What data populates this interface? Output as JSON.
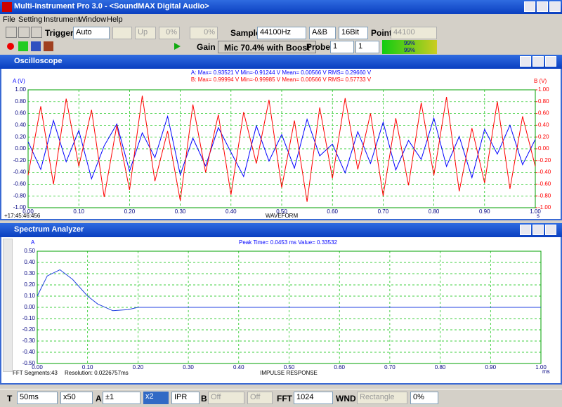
{
  "window_title": "Multi-Instrument Pro 3.0 - <SoundMAX Digital Audio>",
  "menu": [
    "File",
    "Setting",
    "Instrument",
    "Window",
    "Help"
  ],
  "toolbar1": {
    "trigger_label": "Trigger",
    "trigger_mode": "Auto",
    "trigger_edge": "Up",
    "level1": "0%",
    "level2": "0%",
    "sample_label": "Sample",
    "sample_rate": "44100Hz",
    "channels": "A&B",
    "bits": "16Bit",
    "point_label": "Point",
    "points": "44100"
  },
  "toolbar2": {
    "gain_label": "Gain",
    "input": "Mic 70.4% with Boost",
    "probe_label": "Probe",
    "probe_a": "1",
    "probe_b": "1",
    "level_a": "99%",
    "level_b": "99%"
  },
  "oscilloscope": {
    "title": "Oscilloscope",
    "y_label": "A (V)",
    "y2_label": "B (V)",
    "stats_a": "A: Max= 0.93521 V  Min=-0.91244 V  Mean= 0.00566 V  RMS= 0.29660 V",
    "stats_b": "B: Max= 0.99994 V  Min=-0.99985 V  Mean= 0.00566 V  RMS= 0.57733 V",
    "x_label": "WAVEFORM",
    "x_unit": "s",
    "timestamp": "+17:45:46:456",
    "xlim": [
      0,
      1
    ],
    "ylim": [
      -1,
      1
    ],
    "y2lim": [
      -1,
      1
    ],
    "xticks": [
      {
        "value": 0,
        "label": "0.00"
      },
      {
        "value": 0.1,
        "label": "0.10"
      },
      {
        "value": 0.2,
        "label": "0.20"
      },
      {
        "value": 0.3,
        "label": "0.30"
      },
      {
        "value": 0.4,
        "label": "0.40"
      },
      {
        "value": 0.5,
        "label": "0.50"
      },
      {
        "value": 0.6,
        "label": "0.60"
      },
      {
        "value": 0.7,
        "label": "0.70"
      },
      {
        "value": 0.8,
        "label": "0.80"
      },
      {
        "value": 0.9,
        "label": "0.90"
      },
      {
        "value": 1,
        "label": "1.00"
      }
    ],
    "yticks": [
      {
        "value": 1,
        "label": "1.00"
      },
      {
        "value": 0.8,
        "label": "0.80"
      },
      {
        "value": 0.6,
        "label": "0.60"
      },
      {
        "value": 0.4,
        "label": "0.40"
      },
      {
        "value": 0.2,
        "label": "0.20"
      },
      {
        "value": 0,
        "label": "0.00"
      },
      {
        "value": -0.2,
        "label": "-0.20"
      },
      {
        "value": -0.4,
        "label": "-0.40"
      },
      {
        "value": -0.6,
        "label": "-0.60"
      },
      {
        "value": -0.8,
        "label": "-0.80"
      },
      {
        "value": -1,
        "label": "-1.00"
      }
    ],
    "y2ticks": [
      {
        "value": 1,
        "label": "1.00"
      },
      {
        "value": 0.8,
        "label": "0.80"
      },
      {
        "value": 0.6,
        "label": "0.60"
      },
      {
        "value": 0.4,
        "label": "0.40"
      },
      {
        "value": 0.2,
        "label": "0.20"
      },
      {
        "value": 0,
        "label": "0.00"
      },
      {
        "value": -0.2,
        "label": "-0.20"
      },
      {
        "value": -0.4,
        "label": "-0.40"
      },
      {
        "value": -0.6,
        "label": "-0.60"
      },
      {
        "value": -0.8,
        "label": "-0.80"
      },
      {
        "value": -1,
        "label": "-1.00"
      }
    ],
    "x": [
      0,
      0.025,
      0.05,
      0.075,
      0.1,
      0.125,
      0.15,
      0.175,
      0.2,
      0.225,
      0.25,
      0.275,
      0.3,
      0.325,
      0.35,
      0.375,
      0.4,
      0.425,
      0.45,
      0.475,
      0.5,
      0.525,
      0.55,
      0.575,
      0.6,
      0.625,
      0.65,
      0.675,
      0.7,
      0.725,
      0.75,
      0.775,
      0.8,
      0.825,
      0.85,
      0.875,
      0.9,
      0.925,
      0.95,
      0.975,
      1
    ],
    "series": [
      {
        "color": "#0000ff",
        "values": [
          0.12,
          -0.35,
          0.48,
          -0.22,
          0.31,
          -0.51,
          0.05,
          0.42,
          -0.38,
          0.27,
          -0.15,
          0.55,
          -0.44,
          0.18,
          -0.29,
          0.36,
          -0.06,
          -0.47,
          0.39,
          -0.21,
          0.24,
          -0.33,
          0.5,
          -0.12,
          0.08,
          -0.41,
          0.29,
          -0.25,
          0.45,
          -0.36,
          0.14,
          -0.18,
          0.52,
          -0.3,
          0.21,
          -0.49,
          0.33,
          -0.09,
          0.4,
          -0.27,
          0.16
        ]
      },
      {
        "color": "#ff0000",
        "values": [
          -0.45,
          0.72,
          -0.6,
          0.85,
          -0.3,
          0.66,
          -0.82,
          0.4,
          -0.7,
          0.9,
          -0.55,
          0.3,
          -0.88,
          0.75,
          -0.4,
          0.58,
          -0.78,
          0.62,
          -0.25,
          0.83,
          -0.66,
          0.48,
          -0.9,
          0.7,
          -0.5,
          0.86,
          -0.35,
          0.6,
          -0.8,
          0.52,
          -0.62,
          0.78,
          -0.45,
          0.88,
          -0.72,
          0.35,
          -0.58,
          0.8,
          -0.68,
          0.55,
          -0.3
        ]
      }
    ]
  },
  "spectrum": {
    "title": "Spectrum Analyzer",
    "y_label": "A",
    "peak": "Peak Time= 0.0453 ms  Value= 0.33532",
    "x_label": "IMPULSE RESPONSE",
    "x_unit": "ms",
    "fft_segments": "FFT Segments:43",
    "resolution": "Resolution: 0.0226757ms",
    "xlim": [
      0,
      1
    ],
    "ylim": [
      -0.5,
      0.5
    ],
    "xticks": [
      {
        "value": 0,
        "label": "0.00"
      },
      {
        "value": 0.1,
        "label": "0.10"
      },
      {
        "value": 0.2,
        "label": "0.20"
      },
      {
        "value": 0.3,
        "label": "0.30"
      },
      {
        "value": 0.4,
        "label": "0.40"
      },
      {
        "value": 0.5,
        "label": "0.50"
      },
      {
        "value": 0.6,
        "label": "0.60"
      },
      {
        "value": 0.7,
        "label": "0.70"
      },
      {
        "value": 0.8,
        "label": "0.80"
      },
      {
        "value": 0.9,
        "label": "0.90"
      },
      {
        "value": 1,
        "label": "1.00"
      }
    ],
    "yticks": [
      {
        "value": 0.5,
        "label": "0.50"
      },
      {
        "value": 0.4,
        "label": "0.40"
      },
      {
        "value": 0.3,
        "label": "0.30"
      },
      {
        "value": 0.2,
        "label": "0.20"
      },
      {
        "value": 0.1,
        "label": "0.10"
      },
      {
        "value": 0,
        "label": "0.00"
      },
      {
        "value": -0.1,
        "label": "-0.10"
      },
      {
        "value": -0.2,
        "label": "-0.20"
      },
      {
        "value": -0.3,
        "label": "-0.30"
      },
      {
        "value": -0.4,
        "label": "-0.40"
      },
      {
        "value": -0.5,
        "label": "-0.50"
      }
    ],
    "x": [
      0,
      0.02,
      0.045,
      0.07,
      0.1,
      0.12,
      0.15,
      0.18,
      0.2,
      0.25,
      0.5,
      1
    ],
    "series": [
      {
        "color": "#2040e0",
        "values": [
          0.1,
          0.28,
          0.335,
          0.25,
          0.1,
          0.03,
          -0.03,
          -0.02,
          0,
          0,
          0,
          0
        ]
      }
    ]
  },
  "statusbar": {
    "t_label": "T",
    "timebase": "50ms",
    "zoom": "x50",
    "a_label": "A",
    "a_range": "±1",
    "a_gain": "x2",
    "mode": "IPR",
    "b_label": "B",
    "b_range": "Off",
    "b_gain": "Off",
    "fft_label": "FFT",
    "fft_size": "1024",
    "wnd_label": "WND",
    "window": "Rectangle",
    "overlap": "0%"
  }
}
